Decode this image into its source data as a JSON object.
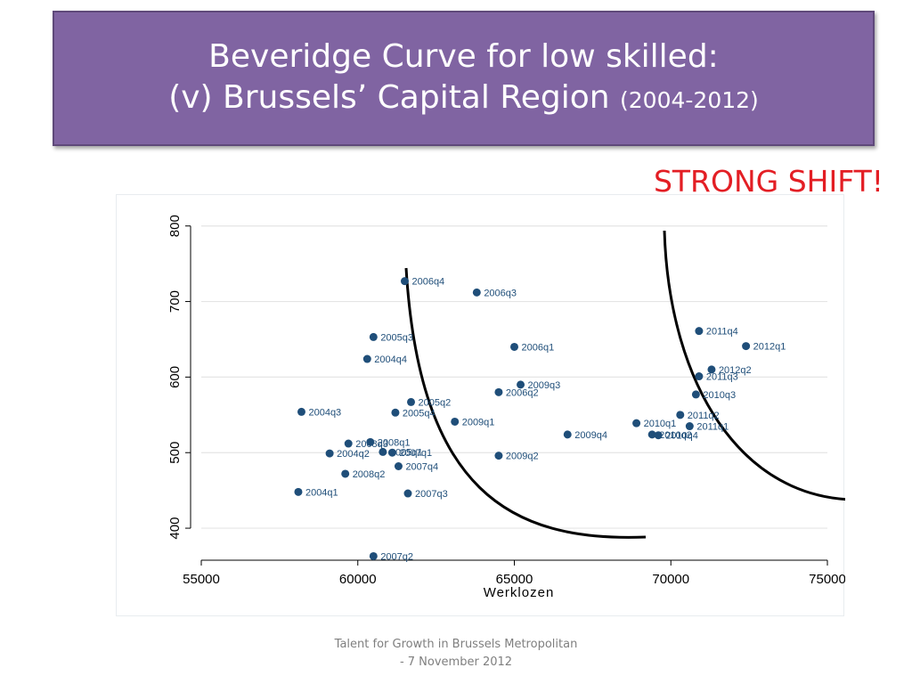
{
  "slide": {
    "title_line1": "Beveridge Curve for low skilled:",
    "title_line2": "(v) Brussels’ Capital Region",
    "title_years": "(2004-2012)",
    "shift_label": "STRONG SHIFT!",
    "footer_line1": "Talent for Growth in Brussels Metropolitan",
    "footer_line2": "- 7 November 2012"
  },
  "colors": {
    "title_bg": "#8064a2",
    "shift_text": "#e31e24",
    "marker": "#1f4e79",
    "curve": "#000000",
    "grid": "#e5e5e5"
  },
  "chart_data": {
    "type": "scatter",
    "xlabel": "Werklozen",
    "ylabel": "",
    "xlim": [
      55000,
      75000
    ],
    "ylim": [
      360,
      815
    ],
    "xticks": [
      55000,
      60000,
      65000,
      70000,
      75000
    ],
    "yticks": [
      400,
      500,
      600,
      700,
      800
    ],
    "grid": "horizontal",
    "points": [
      {
        "label": "2004q1",
        "x": 58100,
        "y": 448
      },
      {
        "label": "2004q2",
        "x": 59100,
        "y": 499
      },
      {
        "label": "2004q3",
        "x": 58200,
        "y": 554
      },
      {
        "label": "2004q4",
        "x": 60300,
        "y": 624
      },
      {
        "label": "2005q1",
        "x": 60800,
        "y": 501
      },
      {
        "label": "2005q2",
        "x": 61700,
        "y": 567
      },
      {
        "label": "2005q3",
        "x": 60500,
        "y": 653
      },
      {
        "label": "2005q4",
        "x": 61200,
        "y": 553
      },
      {
        "label": "2006q1",
        "x": 65000,
        "y": 640
      },
      {
        "label": "2006q2",
        "x": 64500,
        "y": 580
      },
      {
        "label": "2006q3",
        "x": 63800,
        "y": 712
      },
      {
        "label": "2006q4",
        "x": 61500,
        "y": 727
      },
      {
        "label": "2007q1",
        "x": 61100,
        "y": 500
      },
      {
        "label": "2007q2",
        "x": 60500,
        "y": 363
      },
      {
        "label": "2007q3",
        "x": 61600,
        "y": 446
      },
      {
        "label": "2007q4",
        "x": 61300,
        "y": 482
      },
      {
        "label": "2008q1",
        "x": 60400,
        "y": 514
      },
      {
        "label": "2008q2",
        "x": 59600,
        "y": 472
      },
      {
        "label": "2008q3",
        "x": 59700,
        "y": 512
      },
      {
        "label": "2009q1",
        "x": 63100,
        "y": 541
      },
      {
        "label": "2009q2",
        "x": 64500,
        "y": 496
      },
      {
        "label": "2009q3",
        "x": 65200,
        "y": 590
      },
      {
        "label": "2009q4",
        "x": 66700,
        "y": 524
      },
      {
        "label": "2010q1",
        "x": 68900,
        "y": 539
      },
      {
        "label": "2010q2",
        "x": 69400,
        "y": 524
      },
      {
        "label": "2010q3",
        "x": 70800,
        "y": 577
      },
      {
        "label": "2010q4",
        "x": 69600,
        "y": 523
      },
      {
        "label": "2011q1",
        "x": 70600,
        "y": 535
      },
      {
        "label": "2011q2",
        "x": 70300,
        "y": 550
      },
      {
        "label": "2011q3",
        "x": 70900,
        "y": 601
      },
      {
        "label": "2011q4",
        "x": 70900,
        "y": 661
      },
      {
        "label": "2012q1",
        "x": 72400,
        "y": 641
      },
      {
        "label": "2012q2",
        "x": 71300,
        "y": 610
      }
    ]
  }
}
